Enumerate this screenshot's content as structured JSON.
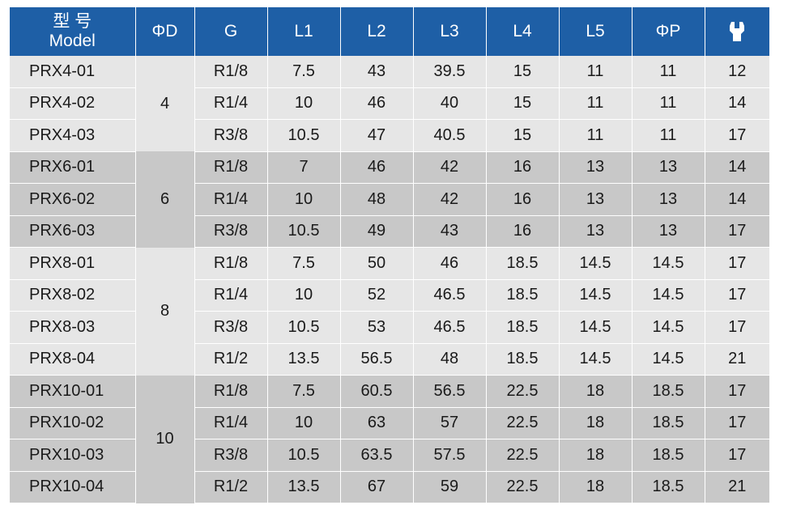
{
  "header": {
    "model_zh": "型 号",
    "model_en": "Model",
    "d": "ΦD",
    "g": "G",
    "l1": "L1",
    "l2": "L2",
    "l3": "L3",
    "l4": "L4",
    "l5": "L5",
    "p": "ΦP",
    "wrench_icon": "wrench-icon"
  },
  "colors": {
    "header_bg": "#1e5fa6",
    "group_light": "#e6e6e6",
    "group_dark": "#c8c8c8"
  },
  "groups": [
    {
      "d": "4",
      "shade": "light",
      "rows": [
        {
          "model": "PRX4-01",
          "g": "R1/8",
          "l1": "7.5",
          "l2": "43",
          "l3": "39.5",
          "l4": "15",
          "l5": "11",
          "p": "11",
          "w": "12"
        },
        {
          "model": "PRX4-02",
          "g": "R1/4",
          "l1": "10",
          "l2": "46",
          "l3": "40",
          "l4": "15",
          "l5": "11",
          "p": "11",
          "w": "14"
        },
        {
          "model": "PRX4-03",
          "g": "R3/8",
          "l1": "10.5",
          "l2": "47",
          "l3": "40.5",
          "l4": "15",
          "l5": "11",
          "p": "11",
          "w": "17"
        }
      ]
    },
    {
      "d": "6",
      "shade": "dark",
      "rows": [
        {
          "model": "PRX6-01",
          "g": "R1/8",
          "l1": "7",
          "l2": "46",
          "l3": "42",
          "l4": "16",
          "l5": "13",
          "p": "13",
          "w": "14"
        },
        {
          "model": "PRX6-02",
          "g": "R1/4",
          "l1": "10",
          "l2": "48",
          "l3": "42",
          "l4": "16",
          "l5": "13",
          "p": "13",
          "w": "14"
        },
        {
          "model": "PRX6-03",
          "g": "R3/8",
          "l1": "10.5",
          "l2": "49",
          "l3": "43",
          "l4": "16",
          "l5": "13",
          "p": "13",
          "w": "17"
        }
      ]
    },
    {
      "d": "8",
      "shade": "light",
      "rows": [
        {
          "model": "PRX8-01",
          "g": "R1/8",
          "l1": "7.5",
          "l2": "50",
          "l3": "46",
          "l4": "18.5",
          "l5": "14.5",
          "p": "14.5",
          "w": "17"
        },
        {
          "model": "PRX8-02",
          "g": "R1/4",
          "l1": "10",
          "l2": "52",
          "l3": "46.5",
          "l4": "18.5",
          "l5": "14.5",
          "p": "14.5",
          "w": "17"
        },
        {
          "model": "PRX8-03",
          "g": "R3/8",
          "l1": "10.5",
          "l2": "53",
          "l3": "46.5",
          "l4": "18.5",
          "l5": "14.5",
          "p": "14.5",
          "w": "17"
        },
        {
          "model": "PRX8-04",
          "g": "R1/2",
          "l1": "13.5",
          "l2": "56.5",
          "l3": "48",
          "l4": "18.5",
          "l5": "14.5",
          "p": "14.5",
          "w": "21"
        }
      ]
    },
    {
      "d": "10",
      "shade": "dark",
      "rows": [
        {
          "model": "PRX10-01",
          "g": "R1/8",
          "l1": "7.5",
          "l2": "60.5",
          "l3": "56.5",
          "l4": "22.5",
          "l5": "18",
          "p": "18.5",
          "w": "17"
        },
        {
          "model": "PRX10-02",
          "g": "R1/4",
          "l1": "10",
          "l2": "63",
          "l3": "57",
          "l4": "22.5",
          "l5": "18",
          "p": "18.5",
          "w": "17"
        },
        {
          "model": "PRX10-03",
          "g": "R3/8",
          "l1": "10.5",
          "l2": "63.5",
          "l3": "57.5",
          "l4": "22.5",
          "l5": "18",
          "p": "18.5",
          "w": "17"
        },
        {
          "model": "PRX10-04",
          "g": "R1/2",
          "l1": "13.5",
          "l2": "67",
          "l3": "59",
          "l4": "22.5",
          "l5": "18",
          "p": "18.5",
          "w": "21"
        }
      ]
    }
  ]
}
